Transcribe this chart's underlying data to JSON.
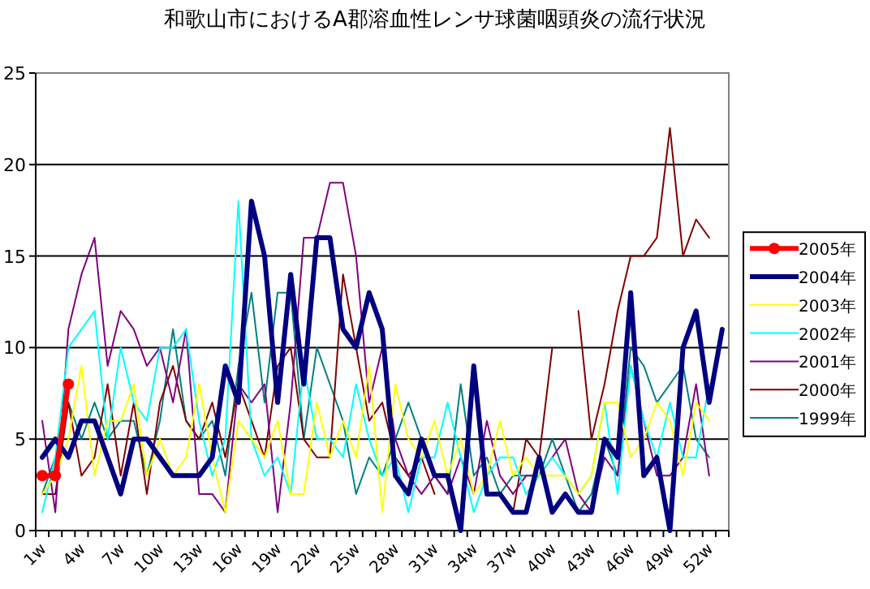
{
  "chart_data": {
    "type": "line",
    "title": "和歌山市におけるA郡溶血性レンサ球菌咽頭炎の流行状況",
    "categories": [
      "1w",
      null,
      null,
      "4w",
      null,
      null,
      "7w",
      null,
      null,
      "10w",
      null,
      null,
      "13w",
      null,
      null,
      "16w",
      null,
      null,
      "19w",
      null,
      null,
      "22w",
      null,
      null,
      "25w",
      null,
      null,
      "28w",
      null,
      null,
      "31w",
      null,
      null,
      "34w",
      null,
      null,
      "37w",
      null,
      null,
      "40w",
      null,
      null,
      "43w",
      null,
      null,
      "46w",
      null,
      null,
      "49w",
      null,
      null,
      "52w",
      null
    ],
    "series": [
      {
        "name": "2005年",
        "color": "#ff0000",
        "marker": "circle",
        "values": [
          3,
          3,
          8,
          null,
          null,
          null,
          null,
          null,
          null,
          null,
          null,
          null,
          null,
          null,
          null,
          null,
          null,
          null,
          null,
          null,
          null,
          null,
          null,
          null,
          null,
          null,
          null,
          null,
          null,
          null,
          null,
          null,
          null,
          null,
          null,
          null,
          null,
          null,
          null,
          null,
          null,
          null,
          null,
          null,
          null,
          null,
          null,
          null,
          null,
          null,
          null,
          null,
          null
        ]
      },
      {
        "name": "2004年",
        "color": "#000080",
        "values": [
          4,
          5,
          4,
          6,
          6,
          4,
          2,
          5,
          5,
          4,
          3,
          3,
          3,
          4,
          9,
          7,
          18,
          15,
          7,
          14,
          8,
          16,
          16,
          11,
          10,
          13,
          11,
          3,
          2,
          5,
          3,
          3,
          0,
          9,
          2,
          2,
          1,
          1,
          4,
          1,
          2,
          1,
          1,
          5,
          4,
          13,
          3,
          4,
          0,
          10,
          12,
          7,
          11
        ]
      },
      {
        "name": "2003年",
        "color": "#ffff00",
        "values": [
          2,
          3,
          5,
          9,
          3,
          6,
          6,
          8,
          3,
          5,
          3,
          4,
          8,
          4,
          1,
          6,
          5,
          4,
          6,
          2,
          2,
          7,
          4,
          6,
          4,
          9,
          1,
          8,
          5,
          4,
          6,
          3,
          5,
          2,
          3,
          6,
          3,
          4,
          3,
          3,
          3,
          2,
          3,
          7,
          7,
          4,
          5,
          7,
          6,
          3,
          7,
          6,
          null
        ]
      },
      {
        "name": "2002年",
        "color": "#00ffff",
        "values": [
          1,
          4,
          10,
          11,
          12,
          5,
          10,
          7,
          6,
          10,
          10,
          11,
          6,
          3,
          5,
          18,
          5,
          3,
          4,
          2,
          9,
          5,
          5,
          4,
          8,
          5,
          3,
          4,
          1,
          4,
          4,
          7,
          4,
          1,
          3,
          4,
          4,
          2,
          3,
          4,
          3,
          2,
          3,
          7,
          2,
          9,
          6,
          4,
          7,
          4,
          4,
          8,
          null
        ]
      },
      {
        "name": "2001年",
        "color": "#800080",
        "values": [
          6,
          1,
          11,
          14,
          16,
          9,
          12,
          11,
          9,
          10,
          7,
          11,
          2,
          2,
          1,
          8,
          7,
          8,
          1,
          7,
          16,
          16,
          19,
          19,
          15,
          7,
          10,
          5,
          3,
          2,
          3,
          2,
          4,
          2,
          6,
          3,
          2,
          3,
          3,
          4,
          5,
          2,
          1,
          4,
          3,
          9,
          6,
          3,
          3,
          4,
          8,
          3,
          null
        ]
      },
      {
        "name": "2000年",
        "color": "#800000",
        "values": [
          2,
          2,
          7,
          3,
          4,
          8,
          3,
          7,
          2,
          7,
          9,
          6,
          5,
          7,
          4,
          8,
          6,
          4,
          9,
          10,
          5,
          4,
          4,
          14,
          10,
          6,
          7,
          4,
          3,
          4,
          2,
          null,
          null,
          null,
          null,
          null,
          1,
          5,
          4,
          10,
          null,
          12,
          5,
          8,
          12,
          15,
          15,
          16,
          22,
          15,
          17,
          16,
          null
        ]
      },
      {
        "name": "1999年",
        "color": "#008080",
        "values": [
          2,
          4,
          7,
          5,
          7,
          5,
          6,
          6,
          3,
          6,
          11,
          6,
          5,
          6,
          3,
          9,
          13,
          7,
          13,
          13,
          5,
          10,
          8,
          6,
          2,
          4,
          3,
          5,
          7,
          5,
          3,
          2,
          8,
          3,
          4,
          2,
          3,
          3,
          3,
          5,
          3,
          1,
          2,
          5,
          3,
          10,
          9,
          7,
          8,
          9,
          5,
          4,
          null
        ]
      }
    ],
    "ylim": [
      0,
      25
    ],
    "yticks": [
      0,
      5,
      10,
      15,
      20,
      25
    ],
    "grid": "y",
    "legend": "right"
  }
}
